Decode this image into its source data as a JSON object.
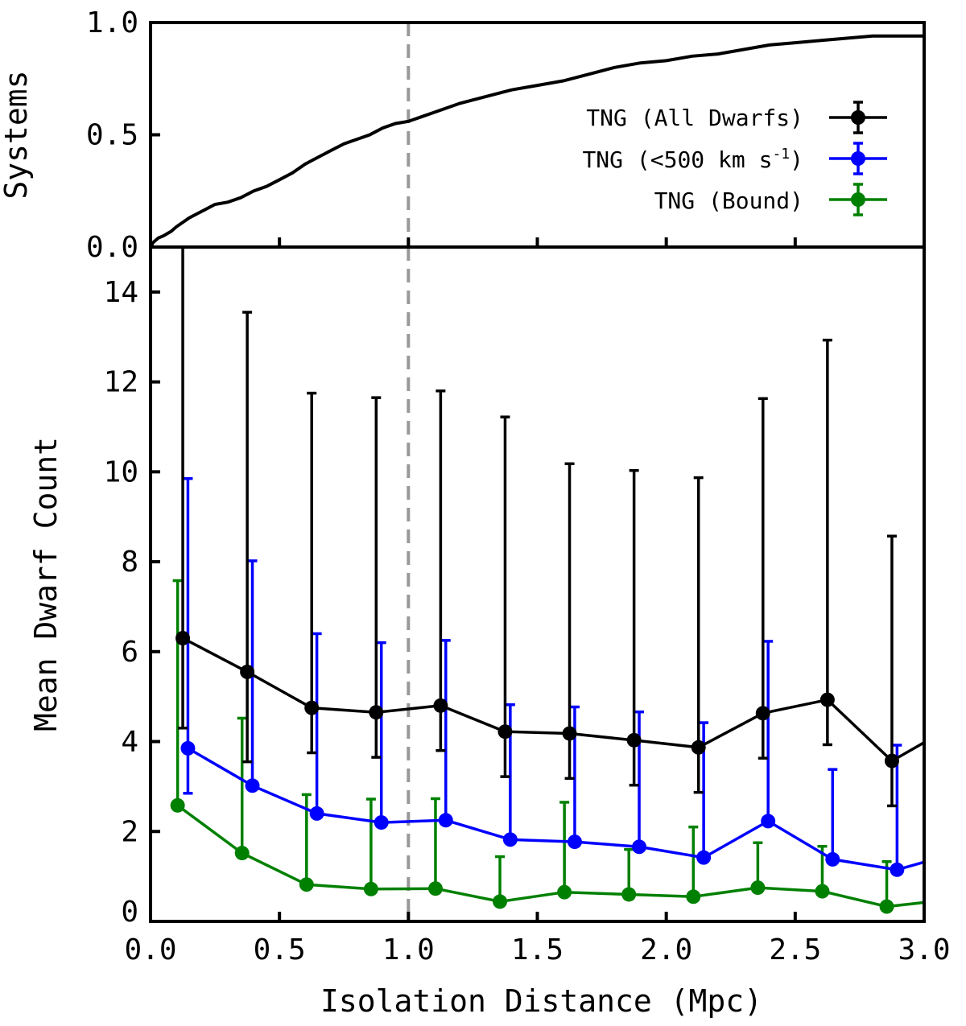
{
  "chart_data": [
    {
      "panel": "top",
      "type": "line",
      "title": "",
      "xlabel": "",
      "ylabel": "Systems",
      "xlim": [
        0.0,
        3.0
      ],
      "ylim": [
        0.0,
        1.0
      ],
      "y_ticks": [
        "0.0",
        "0.5",
        "1.0"
      ],
      "reference_line_x": 1.0,
      "series": [
        {
          "name": "cumulative fraction of systems",
          "color": "#000000",
          "x": [
            0.0,
            0.01,
            0.03,
            0.05,
            0.08,
            0.1,
            0.15,
            0.2,
            0.25,
            0.3,
            0.35,
            0.4,
            0.45,
            0.5,
            0.55,
            0.6,
            0.65,
            0.7,
            0.75,
            0.8,
            0.85,
            0.9,
            0.95,
            1.0,
            1.05,
            1.1,
            1.2,
            1.3,
            1.4,
            1.5,
            1.6,
            1.7,
            1.8,
            1.9,
            2.0,
            2.1,
            2.2,
            2.3,
            2.4,
            2.5,
            2.6,
            2.7,
            2.8,
            2.9,
            3.0
          ],
          "y": [
            0.0,
            0.02,
            0.04,
            0.05,
            0.07,
            0.09,
            0.13,
            0.16,
            0.19,
            0.2,
            0.22,
            0.25,
            0.27,
            0.3,
            0.33,
            0.37,
            0.4,
            0.43,
            0.46,
            0.48,
            0.5,
            0.53,
            0.55,
            0.56,
            0.58,
            0.6,
            0.64,
            0.67,
            0.7,
            0.72,
            0.74,
            0.77,
            0.8,
            0.82,
            0.83,
            0.85,
            0.86,
            0.88,
            0.9,
            0.91,
            0.92,
            0.93,
            0.94,
            0.94,
            0.94
          ]
        }
      ]
    },
    {
      "panel": "bottom",
      "type": "line",
      "title": "",
      "xlabel": "Isolation Distance (Mpc)",
      "ylabel": "Mean Dwarf Count",
      "xlim": [
        0.0,
        3.0
      ],
      "ylim": [
        0,
        15
      ],
      "x_ticks": [
        "0.0",
        "0.5",
        "1.0",
        "1.5",
        "2.0",
        "2.5",
        "3.0"
      ],
      "y_ticks": [
        "0",
        "2",
        "4",
        "6",
        "8",
        "10",
        "12",
        "14"
      ],
      "reference_line_x": 1.0,
      "legend_position": "upper right of top panel",
      "series": [
        {
          "name": "TNG (All Dwarfs)",
          "color": "#000000",
          "x": [
            0.125,
            0.375,
            0.625,
            0.875,
            1.125,
            1.375,
            1.625,
            1.875,
            2.125,
            2.375,
            2.625,
            2.875,
            3.0
          ],
          "y": [
            6.3,
            5.55,
            4.75,
            4.65,
            4.8,
            4.22,
            4.18,
            4.03,
            3.87,
            4.63,
            4.93,
            3.57,
            3.98
          ],
          "y_err_low": [
            2.0,
            2.0,
            1.0,
            1.0,
            1.0,
            1.0,
            1.0,
            1.0,
            1.0,
            1.0,
            1.0,
            1.0,
            null
          ],
          "y_err_high": [
            9.5,
            8.0,
            7.0,
            7.0,
            7.0,
            7.0,
            6.0,
            6.0,
            6.0,
            7.0,
            8.0,
            5.0,
            null
          ]
        },
        {
          "name": "TNG (<500 km s^-1)",
          "color": "#0000ff",
          "x": [
            0.145,
            0.395,
            0.645,
            0.895,
            1.145,
            1.395,
            1.645,
            1.895,
            2.145,
            2.395,
            2.645,
            2.895,
            3.0
          ],
          "y": [
            3.85,
            3.02,
            2.4,
            2.2,
            2.25,
            1.82,
            1.77,
            1.66,
            1.42,
            2.23,
            1.38,
            1.15,
            1.32
          ],
          "y_err_low": [
            1.0,
            null,
            null,
            null,
            null,
            null,
            null,
            null,
            null,
            null,
            null,
            null,
            null
          ],
          "y_err_high": [
            6.0,
            5.0,
            4.0,
            4.0,
            4.0,
            3.0,
            3.0,
            3.0,
            3.0,
            4.0,
            2.0,
            2.77,
            null
          ]
        },
        {
          "name": "TNG (Bound)",
          "color": "#008000",
          "x": [
            0.105,
            0.355,
            0.605,
            0.855,
            1.105,
            1.355,
            1.605,
            1.855,
            2.105,
            2.355,
            2.605,
            2.855,
            3.0
          ],
          "y": [
            2.58,
            1.52,
            0.82,
            0.72,
            0.73,
            0.44,
            0.65,
            0.6,
            0.55,
            0.75,
            0.67,
            0.33,
            0.42
          ],
          "y_err_low": [
            null,
            null,
            null,
            null,
            null,
            null,
            null,
            null,
            null,
            null,
            null,
            null,
            null
          ],
          "y_err_high": [
            5.0,
            3.0,
            2.0,
            2.0,
            2.0,
            1.0,
            2.0,
            1.0,
            1.55,
            1.0,
            1.0,
            1.0,
            null
          ]
        }
      ]
    }
  ],
  "legend": [
    {
      "label": "TNG (All Dwarfs)",
      "color": "#000000"
    },
    {
      "label": "TNG (<500 km s^-1)",
      "color": "#0000ff"
    },
    {
      "label": "TNG (Bound)",
      "color": "#008000"
    }
  ]
}
